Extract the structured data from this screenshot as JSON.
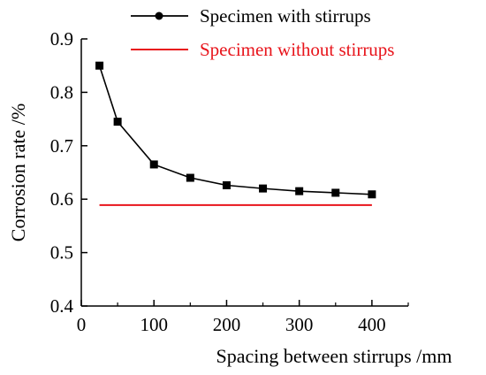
{
  "chart_data": {
    "type": "line",
    "title": "",
    "xlabel": "Spacing between stirrups /mm",
    "ylabel": "Corrosion rate /%",
    "xlim": [
      0,
      450
    ],
    "ylim": [
      0.4,
      0.9
    ],
    "x_ticks": [
      "0",
      "100",
      "200",
      "300",
      "400"
    ],
    "y_ticks": [
      "0.4",
      "0.5",
      "0.6",
      "0.7",
      "0.8",
      "0.9"
    ],
    "grid": false,
    "legend_position": "top-right",
    "series": [
      {
        "name": "Specimen with stirrups",
        "color": "#000000",
        "marker": "square",
        "x": [
          25,
          50,
          100,
          150,
          200,
          250,
          300,
          350,
          400
        ],
        "y": [
          0.85,
          0.745,
          0.665,
          0.64,
          0.626,
          0.62,
          0.615,
          0.612,
          0.609
        ]
      },
      {
        "name": "Specimen without stirrups",
        "color": "#e8141b",
        "marker": "none",
        "x": [
          25,
          400
        ],
        "y": [
          0.589,
          0.589
        ]
      }
    ]
  }
}
